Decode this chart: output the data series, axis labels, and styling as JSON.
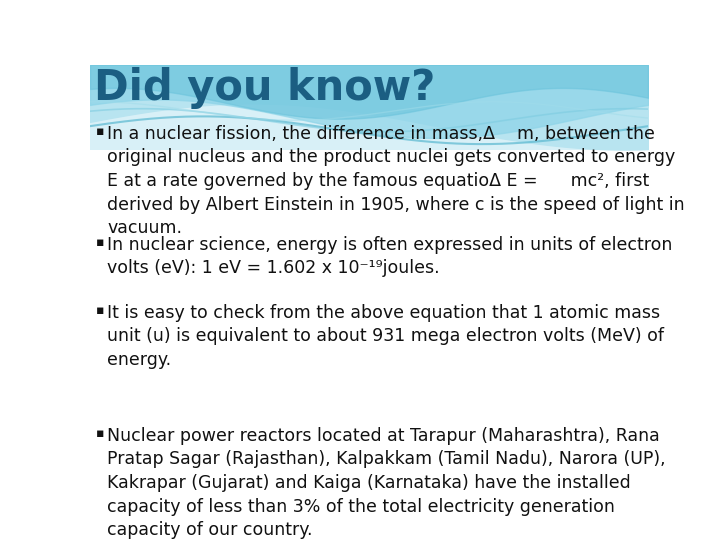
{
  "title": "Did you know?",
  "title_color": "#1b5e82",
  "title_fontsize": 30,
  "bg_color": "#ffffff",
  "bullet_color": "#111111",
  "bullet_fontsize": 12.5,
  "bullet1": "In a nuclear fission, the difference in mass,Δ    m, between the\noriginal nucleus and the product nuclei gets converted to energy\nE at a rate governed by the famous equatioΔ E =      mc², first\nderived by Albert Einstein in 1905, where c is the speed of light in\nvacuum.",
  "bullet2": "In nuclear science, energy is often expressed in units of electron\nvolts (eV): 1 eV = 1.602 x 10⁻¹⁹joules.",
  "bullet3": "It is easy to check from the above equation that 1 atomic mass\nunit (u) is equivalent to about 931 mega electron volts (MeV) of\nenergy.",
  "bullet4": "Nuclear power reactors located at Tarapur (Maharashtra), Rana\nPratap Sagar (Rajasthan), Kalpakkam (Tamil Nadu), Narora (UP),\nKakrapar (Gujarat) and Kaiga (Karnataka) have the installed\ncapacity of less than 3% of the total electricity generation\ncapacity of our country.",
  "wave_bg_color": "#d8f0f7",
  "wave1_color": "#b8e4f0",
  "wave2_color": "#8dd4e8",
  "wave3_color": "#6cc4dc",
  "wave_line1": "#5ab8d0",
  "wave_line2": "#7ecce0",
  "wave_line3": "#a0dcea"
}
